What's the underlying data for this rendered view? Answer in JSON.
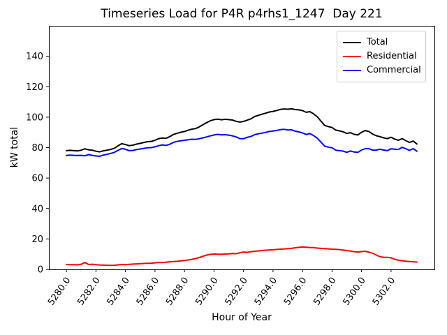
{
  "chart_data": {
    "type": "line",
    "title": "Timeseries Load for P4R p4rhs1_1247  Day 221",
    "xlabel": "Hour of Year",
    "ylabel": "kW total",
    "xlim": [
      5278.81,
      5304.94
    ],
    "ylim": [
      0,
      160
    ],
    "grid": false,
    "legend_position": "upper right",
    "xticks": {
      "values": [
        5280,
        5282,
        5284,
        5286,
        5288,
        5290,
        5292,
        5294,
        5296,
        5298,
        5300,
        5302
      ],
      "labels": [
        "5280.0",
        "5282.0",
        "5284.0",
        "5286.0",
        "5288.0",
        "5290.0",
        "5292.0",
        "5294.0",
        "5296.0",
        "5298.0",
        "5300.0",
        "5302.0"
      ]
    },
    "yticks": {
      "values": [
        0,
        20,
        40,
        60,
        80,
        100,
        120,
        140
      ],
      "labels": [
        "0",
        "20",
        "40",
        "60",
        "80",
        "100",
        "120",
        "140"
      ]
    },
    "x": [
      5280.0,
      5280.25,
      5280.5,
      5280.75,
      5281.0,
      5281.25,
      5281.5,
      5281.75,
      5282.0,
      5282.25,
      5282.5,
      5282.75,
      5283.0,
      5283.25,
      5283.5,
      5283.75,
      5284.0,
      5284.25,
      5284.5,
      5284.75,
      5285.0,
      5285.25,
      5285.5,
      5285.75,
      5286.0,
      5286.25,
      5286.5,
      5286.75,
      5287.0,
      5287.25,
      5287.5,
      5287.75,
      5288.0,
      5288.25,
      5288.5,
      5288.75,
      5289.0,
      5289.25,
      5289.5,
      5289.75,
      5290.0,
      5290.25,
      5290.5,
      5290.75,
      5291.0,
      5291.25,
      5291.5,
      5291.75,
      5292.0,
      5292.25,
      5292.5,
      5292.75,
      5293.0,
      5293.25,
      5293.5,
      5293.75,
      5294.0,
      5294.25,
      5294.5,
      5294.75,
      5295.0,
      5295.25,
      5295.5,
      5295.75,
      5296.0,
      5296.25,
      5296.5,
      5296.75,
      5297.0,
      5297.25,
      5297.5,
      5297.75,
      5298.0,
      5298.25,
      5298.5,
      5298.75,
      5299.0,
      5299.25,
      5299.5,
      5299.75,
      5300.0,
      5300.25,
      5300.5,
      5300.75,
      5301.0,
      5301.25,
      5301.5,
      5301.75,
      5302.0,
      5302.25,
      5302.5,
      5302.75,
      5303.0,
      5303.25,
      5303.5,
      5303.75
    ],
    "series": [
      {
        "name": "Total",
        "color": "#000000",
        "values": [
          78.0,
          78.2,
          78.0,
          77.8,
          78.3,
          79.2,
          78.6,
          78.3,
          77.6,
          77.2,
          77.9,
          78.3,
          78.8,
          79.6,
          81.2,
          82.6,
          82.0,
          81.3,
          81.6,
          82.3,
          82.8,
          83.4,
          83.9,
          84.1,
          84.8,
          85.9,
          86.3,
          86.1,
          87.2,
          88.6,
          89.4,
          90.1,
          90.6,
          91.4,
          92.1,
          92.5,
          93.6,
          95.0,
          96.4,
          97.6,
          98.4,
          98.7,
          98.3,
          98.6,
          98.4,
          98.1,
          97.3,
          96.8,
          97.2,
          98.0,
          98.9,
          100.4,
          101.2,
          101.9,
          102.6,
          103.4,
          103.8,
          104.4,
          105.1,
          105.4,
          105.2,
          105.5,
          105.0,
          104.8,
          104.3,
          103.2,
          103.6,
          102.2,
          100.2,
          97.4,
          94.6,
          93.8,
          93.2,
          91.5,
          91.0,
          90.4,
          89.3,
          89.8,
          88.7,
          88.3,
          90.1,
          91.2,
          90.6,
          88.9,
          87.8,
          87.2,
          86.4,
          85.9,
          86.8,
          85.6,
          84.8,
          85.9,
          84.6,
          83.4,
          84.3,
          82.4
        ]
      },
      {
        "name": "Residential",
        "color": "#ff0000",
        "values": [
          3.2,
          3.1,
          3.1,
          3.0,
          3.4,
          4.6,
          3.2,
          3.4,
          3.1,
          2.9,
          2.8,
          2.7,
          2.6,
          2.7,
          3.0,
          3.2,
          3.1,
          3.3,
          3.5,
          3.6,
          3.7,
          3.9,
          4.0,
          4.1,
          4.3,
          4.6,
          4.5,
          4.7,
          5.0,
          5.2,
          5.3,
          5.6,
          5.8,
          6.2,
          6.6,
          7.1,
          7.8,
          8.6,
          9.4,
          9.9,
          10.1,
          10.0,
          9.9,
          10.1,
          10.2,
          10.4,
          10.3,
          10.9,
          11.4,
          11.2,
          11.6,
          11.9,
          12.1,
          12.4,
          12.6,
          12.8,
          12.9,
          13.1,
          13.3,
          13.4,
          13.6,
          13.8,
          14.2,
          14.5,
          14.7,
          14.6,
          14.4,
          14.3,
          14.0,
          13.8,
          13.6,
          13.5,
          13.3,
          13.2,
          13.0,
          12.7,
          12.4,
          12.0,
          11.6,
          11.4,
          11.7,
          11.9,
          11.3,
          10.6,
          9.4,
          8.3,
          8.0,
          7.9,
          7.6,
          6.6,
          6.0,
          5.7,
          5.4,
          5.2,
          5.0,
          4.8
        ]
      },
      {
        "name": "Commercial",
        "color": "#0000ff",
        "values": [
          74.8,
          75.1,
          74.9,
          74.8,
          74.9,
          74.6,
          75.4,
          74.9,
          74.5,
          74.3,
          75.1,
          75.6,
          76.2,
          76.9,
          78.2,
          79.4,
          78.9,
          78.0,
          78.1,
          78.7,
          79.1,
          79.5,
          79.9,
          80.0,
          80.5,
          81.3,
          81.8,
          81.4,
          82.2,
          83.4,
          84.1,
          84.5,
          84.8,
          85.2,
          85.5,
          85.4,
          85.8,
          86.4,
          87.0,
          87.7,
          88.3,
          88.7,
          88.4,
          88.5,
          88.2,
          87.7,
          87.0,
          85.9,
          85.8,
          86.8,
          87.3,
          88.5,
          89.1,
          89.5,
          90.0,
          90.6,
          90.9,
          91.3,
          91.8,
          92.0,
          91.6,
          91.7,
          90.8,
          90.3,
          89.6,
          88.6,
          89.2,
          87.9,
          86.2,
          83.6,
          81.0,
          80.3,
          79.9,
          78.3,
          78.0,
          77.7,
          76.9,
          77.8,
          77.1,
          76.9,
          78.4,
          79.3,
          79.3,
          78.3,
          78.4,
          78.9,
          78.4,
          78.0,
          79.2,
          79.0,
          78.8,
          80.2,
          79.2,
          78.2,
          79.3,
          77.6
        ]
      }
    ]
  }
}
